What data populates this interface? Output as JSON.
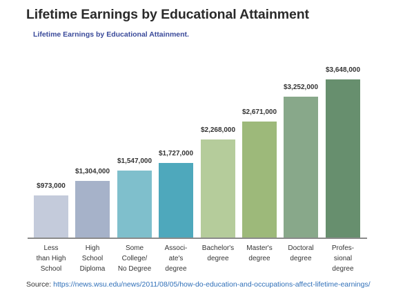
{
  "page": {
    "title": "Lifetime Earnings by Educational Attainment",
    "subtitle": "Lifetime Earnings by Educational Attainment.",
    "source_label": "Source:",
    "source_url": "https://news.wsu.edu/news/2011/08/05/how-do-education-and-occupations-affect-lifetime-earnings/"
  },
  "chart_data": {
    "type": "bar",
    "title": "Lifetime Earnings by Educational Attainment.",
    "xlabel": "",
    "ylabel": "",
    "grid": false,
    "legend": null,
    "ylim": [
      0,
      3648000
    ],
    "categories": [
      "Less\nthan High\nSchool",
      "High\nSchool\nDiploma",
      "Some\nCollege/\nNo Degree",
      "Associ-\nate's\ndegree",
      "Bachelor's\ndegree",
      "Master's\ndegree",
      "Doctoral\ndegree",
      "Profes-\nsional\ndegree"
    ],
    "values": [
      973000,
      1304000,
      1547000,
      1727000,
      2268000,
      2671000,
      3252000,
      3648000
    ],
    "labels": [
      "$973,000",
      "$1,304,000",
      "$1,547,000",
      "$1,727,000",
      "$2,268,000",
      "$2,671,000",
      "$3,252,000",
      "$3,648,000"
    ],
    "colors": [
      "#c4cbdb",
      "#a6b2c9",
      "#7fbfcc",
      "#4ea8bc",
      "#b5cc9b",
      "#9db97a",
      "#88a88a",
      "#678f6e"
    ]
  }
}
